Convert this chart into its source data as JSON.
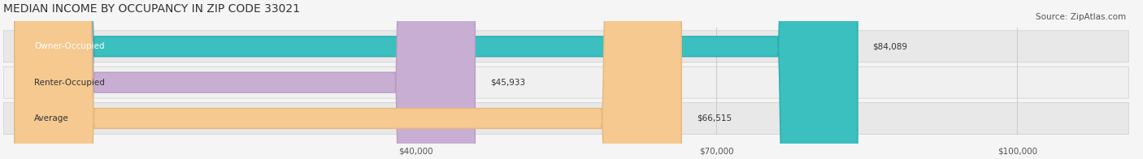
{
  "title": "MEDIAN INCOME BY OCCUPANCY IN ZIP CODE 33021",
  "source": "Source: ZipAtlas.com",
  "categories": [
    "Owner-Occupied",
    "Renter-Occupied",
    "Average"
  ],
  "values": [
    84089,
    45933,
    66515
  ],
  "labels": [
    "$84,089",
    "$45,933",
    "$66,515"
  ],
  "bar_colors": [
    "#3bbfbf",
    "#c9aed4",
    "#f5c990"
  ],
  "bar_edge_colors": [
    "#2aadad",
    "#b89dc3",
    "#e4b87f"
  ],
  "bg_colors": [
    "#e8e8e8",
    "#f0f0f0",
    "#e8e8e8"
  ],
  "xlim": [
    0,
    110000
  ],
  "xticks": [
    40000,
    70000,
    100000
  ],
  "xtick_labels": [
    "$40,000",
    "$70,000",
    "$100,000"
  ],
  "figsize": [
    14.06,
    1.96
  ],
  "dpi": 100,
  "title_fontsize": 10,
  "label_fontsize": 7.5,
  "category_fontsize": 7.5,
  "source_fontsize": 7.5,
  "tick_fontsize": 7.5
}
